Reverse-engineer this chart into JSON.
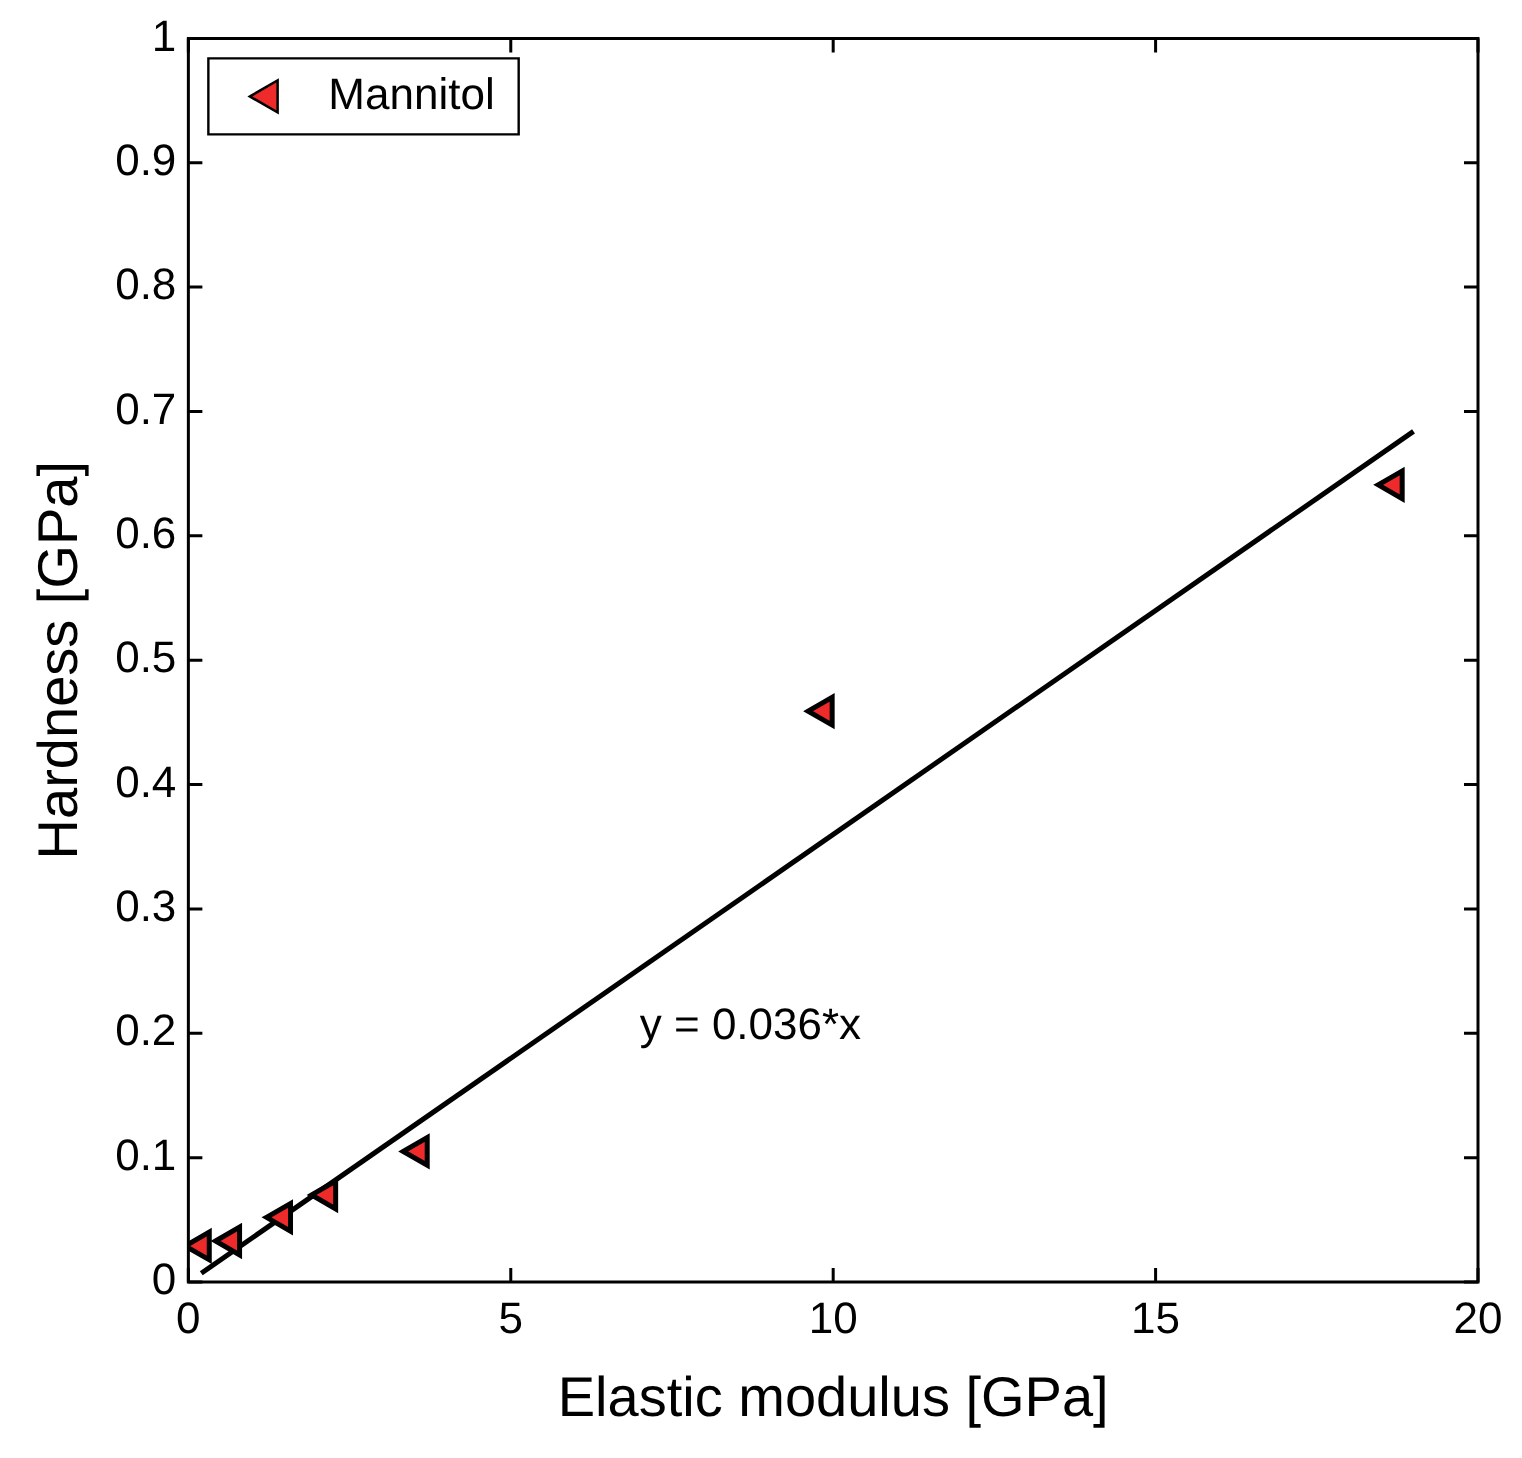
{
  "chart_data": {
    "type": "scatter",
    "xlabel": "Elastic modulus [GPa]",
    "ylabel": "Hardness [GPa]",
    "series": [
      {
        "name": "Mannitol",
        "color": "#ee2a2a",
        "marker": "triangle",
        "x": [
          0.2,
          0.67,
          1.46,
          2.16,
          3.58,
          9.86,
          18.7
        ],
        "values": [
          0.029,
          0.033,
          0.052,
          0.07,
          0.105,
          0.459,
          0.641
        ]
      },
      {
        "type": "line",
        "color": "#000000",
        "marker": "none",
        "x": [
          0.2,
          19
        ],
        "values": [
          0.007,
          0.684
        ]
      }
    ],
    "annotations": [
      "y = 0.036*x"
    ],
    "xlim": [
      0,
      20
    ],
    "xticks": [
      0,
      5,
      10,
      15,
      20
    ],
    "ylim": [
      0,
      1
    ],
    "yticks": [
      0,
      0.1,
      0.2,
      0.3,
      0.4,
      0.5,
      0.6,
      0.7,
      0.8,
      0.9,
      1
    ],
    "grid": false,
    "legend": "top left"
  }
}
